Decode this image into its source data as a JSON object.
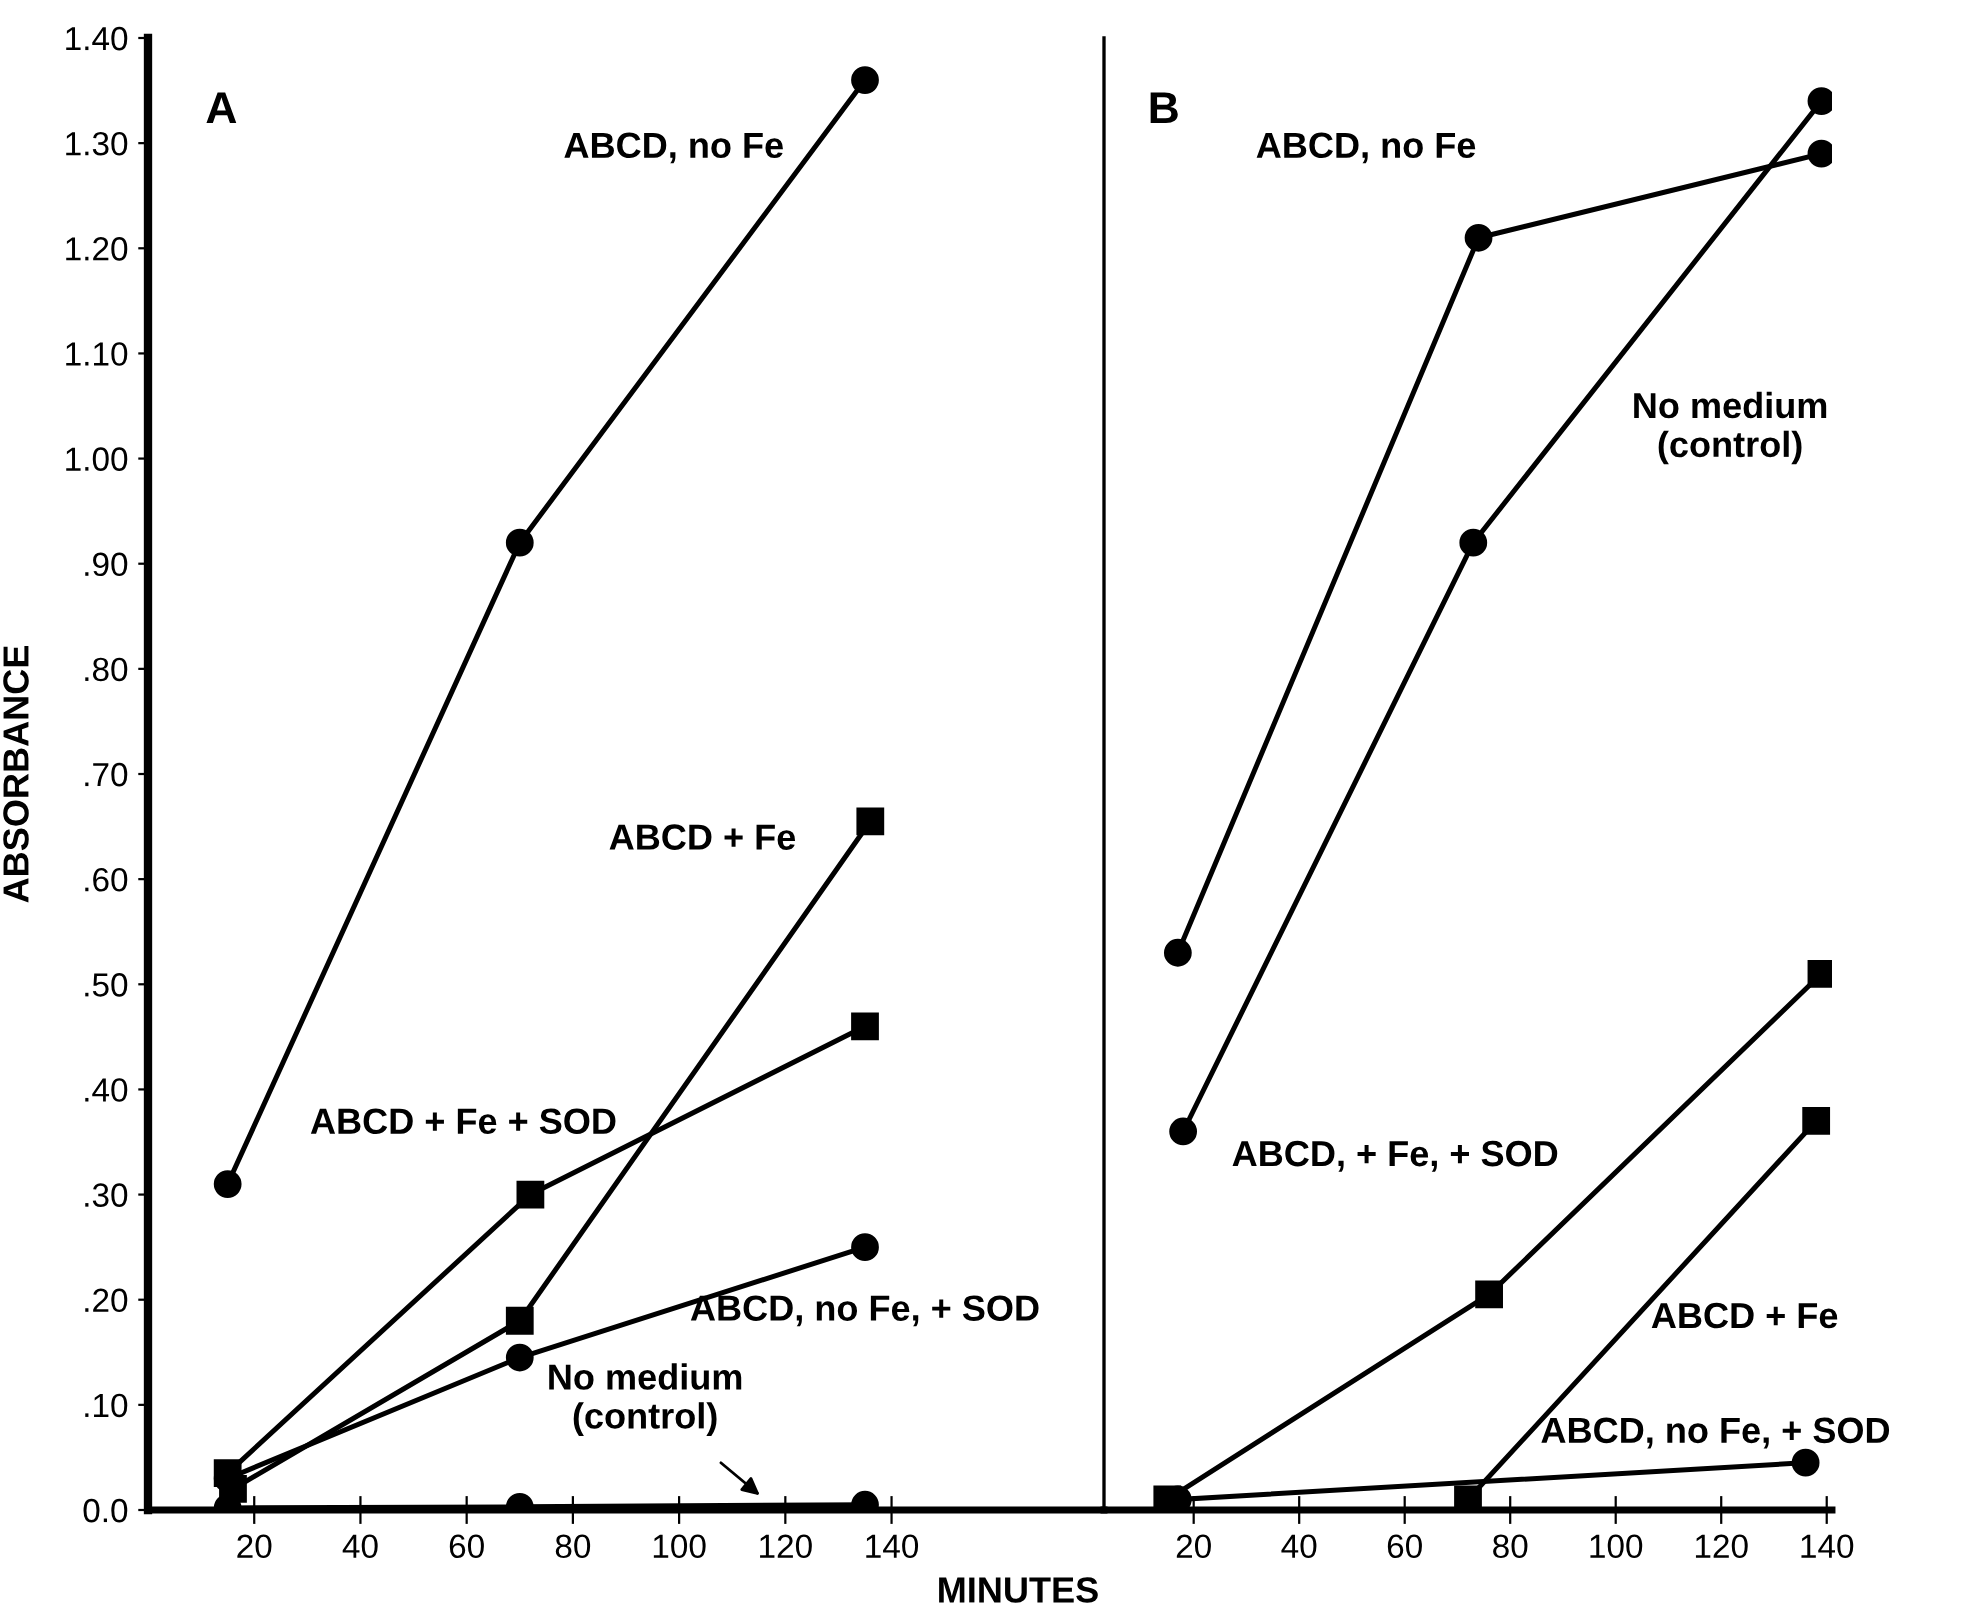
{
  "chart_data": [
    {
      "type": "line",
      "title": "A",
      "xlabel": "MINUTES",
      "ylabel": "ABSORBANCE",
      "xlim": [
        0,
        180
      ],
      "ylim": [
        0,
        1.4
      ],
      "xticks": [
        20,
        40,
        60,
        80,
        100,
        120,
        140
      ],
      "yticks": [
        {
          "value": 0,
          "label": "0.0"
        },
        {
          "value": 0.1,
          "label": ".10"
        },
        {
          "value": 0.2,
          "label": ".20"
        },
        {
          "value": 0.3,
          "label": ".30"
        },
        {
          "value": 0.4,
          "label": ".40"
        },
        {
          "value": 0.5,
          "label": ".50"
        },
        {
          "value": 0.6,
          "label": ".60"
        },
        {
          "value": 0.7,
          "label": ".70"
        },
        {
          "value": 0.8,
          "label": ".80"
        },
        {
          "value": 0.9,
          "label": ".90"
        },
        {
          "value": 1.0,
          "label": "1.00"
        },
        {
          "value": 1.1,
          "label": "1.10"
        },
        {
          "value": 1.2,
          "label": "1.20"
        },
        {
          "value": 1.3,
          "label": "1.30"
        },
        {
          "value": 1.4,
          "label": "1.40"
        }
      ],
      "grid": false,
      "legend": false,
      "line_style": "solid",
      "series": [
        {
          "name": "ABCD, no Fe",
          "color": "#000000",
          "marker": "circle",
          "x": [
            15,
            70,
            135
          ],
          "values": [
            0.31,
            0.92,
            1.36
          ]
        },
        {
          "name": "ABCD + Fe",
          "color": "#000000",
          "marker": "square",
          "x": [
            16,
            70,
            136
          ],
          "values": [
            0.02,
            0.18,
            0.655
          ]
        },
        {
          "name": "ABCD + Fe + SOD",
          "color": "#000000",
          "marker": "square",
          "x": [
            15,
            72,
            135
          ],
          "values": [
            0.035,
            0.3,
            0.46
          ]
        },
        {
          "name": "ABCD, no Fe, + SOD",
          "color": "#000000",
          "marker": "circle",
          "x": [
            15,
            70,
            135
          ],
          "values": [
            0.03,
            0.145,
            0.25
          ]
        },
        {
          "name": "No medium\n(control)",
          "color": "#000000",
          "marker": "circle",
          "x": [
            15,
            70,
            135
          ],
          "values": [
            0.002,
            0.003,
            0.005
          ]
        }
      ]
    },
    {
      "type": "line",
      "title": "B",
      "xlim": [
        3,
        141
      ],
      "ylim": [
        0,
        1.4
      ],
      "tick_labels": "x",
      "xticks": [
        20,
        40,
        60,
        80,
        100,
        120,
        140
      ],
      "grid": false,
      "legend": false,
      "line_style": "solid",
      "series": [
        {
          "name": "ABCD, no Fe",
          "color": "#000000",
          "marker": "circle",
          "x": [
            17,
            74,
            139
          ],
          "values": [
            0.53,
            1.21,
            1.29
          ]
        },
        {
          "name": "No medium\n(control)",
          "color": "#000000",
          "marker": "circle",
          "x": [
            18,
            73,
            139
          ],
          "values": [
            0.36,
            0.92,
            1.34
          ]
        },
        {
          "name": "ABCD, + Fe, + SOD",
          "color": "#000000",
          "marker": "square",
          "x": [
            15,
            76,
            139
          ],
          "values": [
            0.01,
            0.205,
            0.51
          ]
        },
        {
          "name": "ABCD + Fe",
          "color": "#000000",
          "marker": "square",
          "x": [
            72,
            138
          ],
          "values": [
            0.01,
            0.37
          ]
        },
        {
          "name": "ABCD, no Fe, + SOD",
          "color": "#000000",
          "marker": "circle",
          "x": [
            17,
            136
          ],
          "values": [
            0.01,
            0.045
          ]
        }
      ]
    }
  ]
}
